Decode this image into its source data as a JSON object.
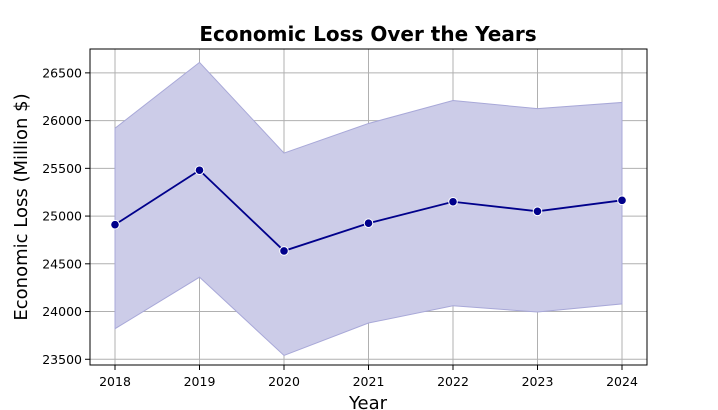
{
  "chart_data": {
    "type": "line",
    "title": "Economic Loss Over the Years",
    "xlabel": "Year",
    "ylabel": "Economic Loss (Million $)",
    "x": [
      "2018",
      "2019",
      "2020",
      "2021",
      "2022",
      "2023",
      "2024"
    ],
    "series": [
      {
        "values": [
          24910,
          25480,
          24635,
          24925,
          25150,
          25050,
          25165
        ],
        "band_upper": [
          25920,
          26610,
          25660,
          25970,
          26210,
          26125,
          26190
        ],
        "band_lower": [
          23820,
          24360,
          23540,
          23880,
          24060,
          23995,
          24080
        ],
        "line_color": "#00008b",
        "band_color": "#cccce8"
      }
    ],
    "yticks": [
      23500,
      24000,
      24500,
      25000,
      25500,
      26000,
      26500
    ],
    "ylim": [
      23440,
      26750
    ],
    "grid": true,
    "legend": "none"
  }
}
